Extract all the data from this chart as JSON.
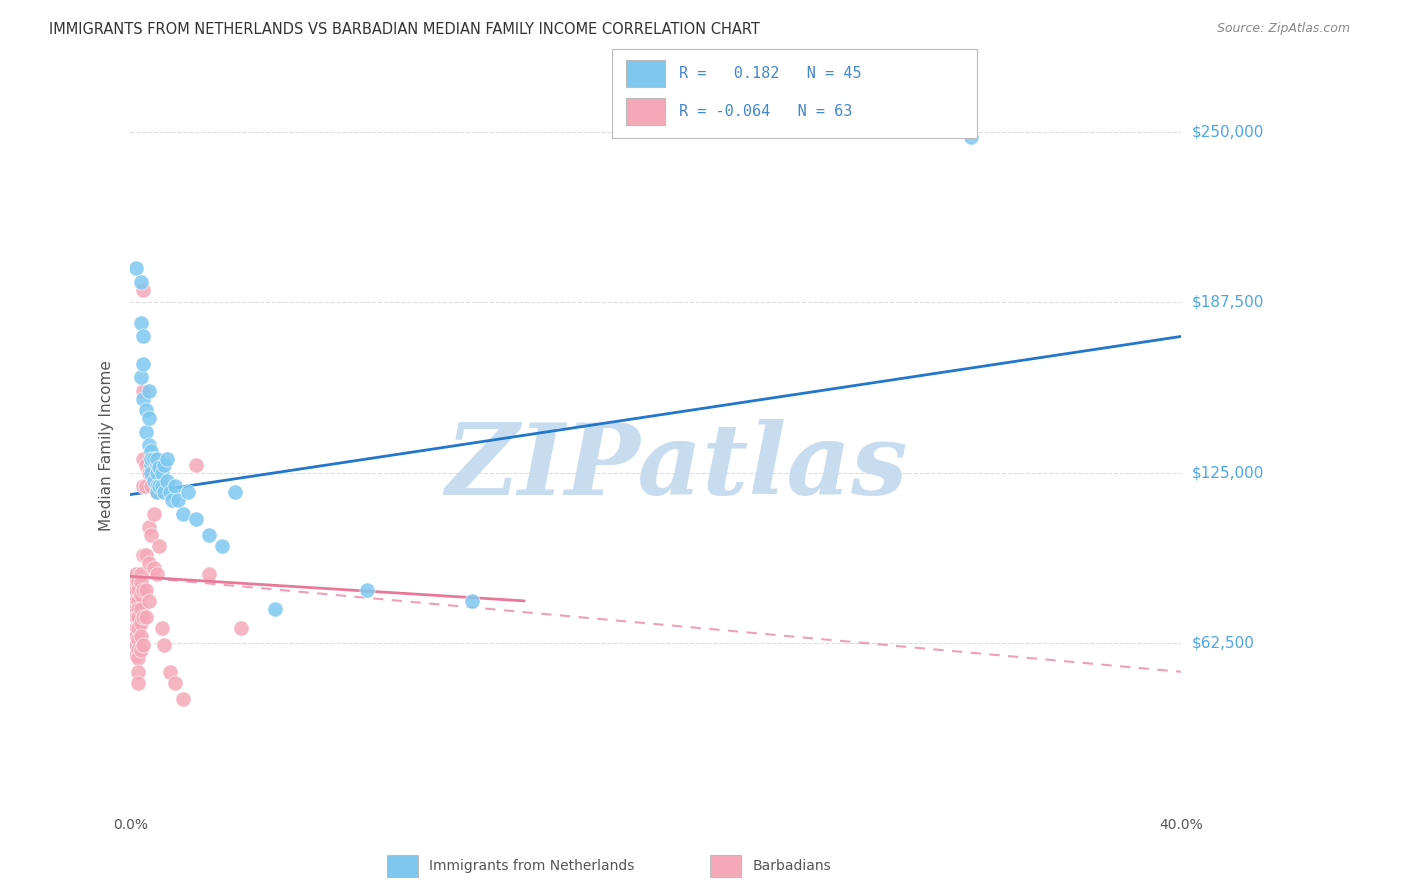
{
  "title": "IMMIGRANTS FROM NETHERLANDS VS BARBADIAN MEDIAN FAMILY INCOME CORRELATION CHART",
  "source": "Source: ZipAtlas.com",
  "ylabel": "Median Family Income",
  "xlim": [
    0.0,
    0.4
  ],
  "ylim": [
    0,
    270000
  ],
  "yticks": [
    0,
    62500,
    125000,
    187500,
    250000
  ],
  "ytick_labels": [
    "",
    "$62,500",
    "$125,000",
    "$187,500",
    "$250,000"
  ],
  "xticks": [
    0.0,
    0.08,
    0.16,
    0.24,
    0.32,
    0.4
  ],
  "xtick_labels": [
    "0.0%",
    "",
    "",
    "",
    "",
    "40.0%"
  ],
  "legend_blue_label": "R =   0.182   N = 45",
  "legend_pink_label": "R = -0.064   N = 63",
  "footer_blue": "Immigrants from Netherlands",
  "footer_pink": "Barbadians",
  "blue_color": "#7EC8F0",
  "pink_color": "#F5A8B8",
  "blue_line_color": "#2277CC",
  "pink_line_color": "#E87898",
  "blue_line": [
    [
      0.0,
      117000
    ],
    [
      0.4,
      175000
    ]
  ],
  "pink_line_solid": [
    [
      0.0,
      87000
    ],
    [
      0.15,
      78000
    ]
  ],
  "pink_line_dashed": [
    [
      0.0,
      87000
    ],
    [
      0.4,
      52000
    ]
  ],
  "blue_scatter": [
    [
      0.002,
      200000
    ],
    [
      0.004,
      195000
    ],
    [
      0.004,
      180000
    ],
    [
      0.004,
      160000
    ],
    [
      0.005,
      175000
    ],
    [
      0.005,
      165000
    ],
    [
      0.005,
      152000
    ],
    [
      0.006,
      148000
    ],
    [
      0.006,
      140000
    ],
    [
      0.007,
      145000
    ],
    [
      0.007,
      135000
    ],
    [
      0.007,
      155000
    ],
    [
      0.008,
      133000
    ],
    [
      0.008,
      128000
    ],
    [
      0.008,
      130000
    ],
    [
      0.008,
      125000
    ],
    [
      0.009,
      130000
    ],
    [
      0.009,
      122000
    ],
    [
      0.01,
      128000
    ],
    [
      0.01,
      125000
    ],
    [
      0.01,
      120000
    ],
    [
      0.01,
      118000
    ],
    [
      0.01,
      130000
    ],
    [
      0.011,
      127000
    ],
    [
      0.011,
      120000
    ],
    [
      0.012,
      125000
    ],
    [
      0.012,
      120000
    ],
    [
      0.013,
      128000
    ],
    [
      0.013,
      118000
    ],
    [
      0.014,
      130000
    ],
    [
      0.014,
      122000
    ],
    [
      0.015,
      118000
    ],
    [
      0.016,
      115000
    ],
    [
      0.017,
      120000
    ],
    [
      0.018,
      115000
    ],
    [
      0.02,
      110000
    ],
    [
      0.022,
      118000
    ],
    [
      0.025,
      108000
    ],
    [
      0.03,
      102000
    ],
    [
      0.035,
      98000
    ],
    [
      0.04,
      118000
    ],
    [
      0.055,
      75000
    ],
    [
      0.09,
      82000
    ],
    [
      0.13,
      78000
    ],
    [
      0.32,
      248000
    ]
  ],
  "pink_scatter": [
    [
      0.001,
      85000
    ],
    [
      0.001,
      80000
    ],
    [
      0.001,
      75000
    ],
    [
      0.002,
      88000
    ],
    [
      0.002,
      85000
    ],
    [
      0.002,
      82000
    ],
    [
      0.002,
      78000
    ],
    [
      0.002,
      75000
    ],
    [
      0.002,
      72000
    ],
    [
      0.002,
      68000
    ],
    [
      0.002,
      65000
    ],
    [
      0.002,
      62000
    ],
    [
      0.002,
      58000
    ],
    [
      0.003,
      85000
    ],
    [
      0.003,
      82000
    ],
    [
      0.003,
      78000
    ],
    [
      0.003,
      75000
    ],
    [
      0.003,
      72000
    ],
    [
      0.003,
      68000
    ],
    [
      0.003,
      64000
    ],
    [
      0.003,
      60000
    ],
    [
      0.003,
      57000
    ],
    [
      0.003,
      52000
    ],
    [
      0.003,
      48000
    ],
    [
      0.004,
      88000
    ],
    [
      0.004,
      85000
    ],
    [
      0.004,
      80000
    ],
    [
      0.004,
      75000
    ],
    [
      0.004,
      70000
    ],
    [
      0.004,
      65000
    ],
    [
      0.004,
      60000
    ],
    [
      0.005,
      192000
    ],
    [
      0.005,
      155000
    ],
    [
      0.005,
      130000
    ],
    [
      0.005,
      120000
    ],
    [
      0.005,
      95000
    ],
    [
      0.005,
      82000
    ],
    [
      0.005,
      72000
    ],
    [
      0.005,
      62000
    ],
    [
      0.006,
      128000
    ],
    [
      0.006,
      120000
    ],
    [
      0.006,
      95000
    ],
    [
      0.006,
      82000
    ],
    [
      0.006,
      72000
    ],
    [
      0.007,
      125000
    ],
    [
      0.007,
      105000
    ],
    [
      0.007,
      92000
    ],
    [
      0.007,
      78000
    ],
    [
      0.008,
      120000
    ],
    [
      0.008,
      102000
    ],
    [
      0.009,
      110000
    ],
    [
      0.009,
      90000
    ],
    [
      0.01,
      118000
    ],
    [
      0.01,
      88000
    ],
    [
      0.011,
      98000
    ],
    [
      0.012,
      68000
    ],
    [
      0.013,
      62000
    ],
    [
      0.015,
      52000
    ],
    [
      0.017,
      48000
    ],
    [
      0.02,
      42000
    ],
    [
      0.025,
      128000
    ],
    [
      0.03,
      88000
    ],
    [
      0.042,
      68000
    ]
  ],
  "watermark_text": "ZIPatlas",
  "watermark_color": "#C8DCF0",
  "background_color": "#FFFFFF",
  "grid_color": "#DDDDDD",
  "title_color": "#333333",
  "label_color": "#555555",
  "right_label_color": "#4DA6E8",
  "legend_text_color": "#4488CC"
}
